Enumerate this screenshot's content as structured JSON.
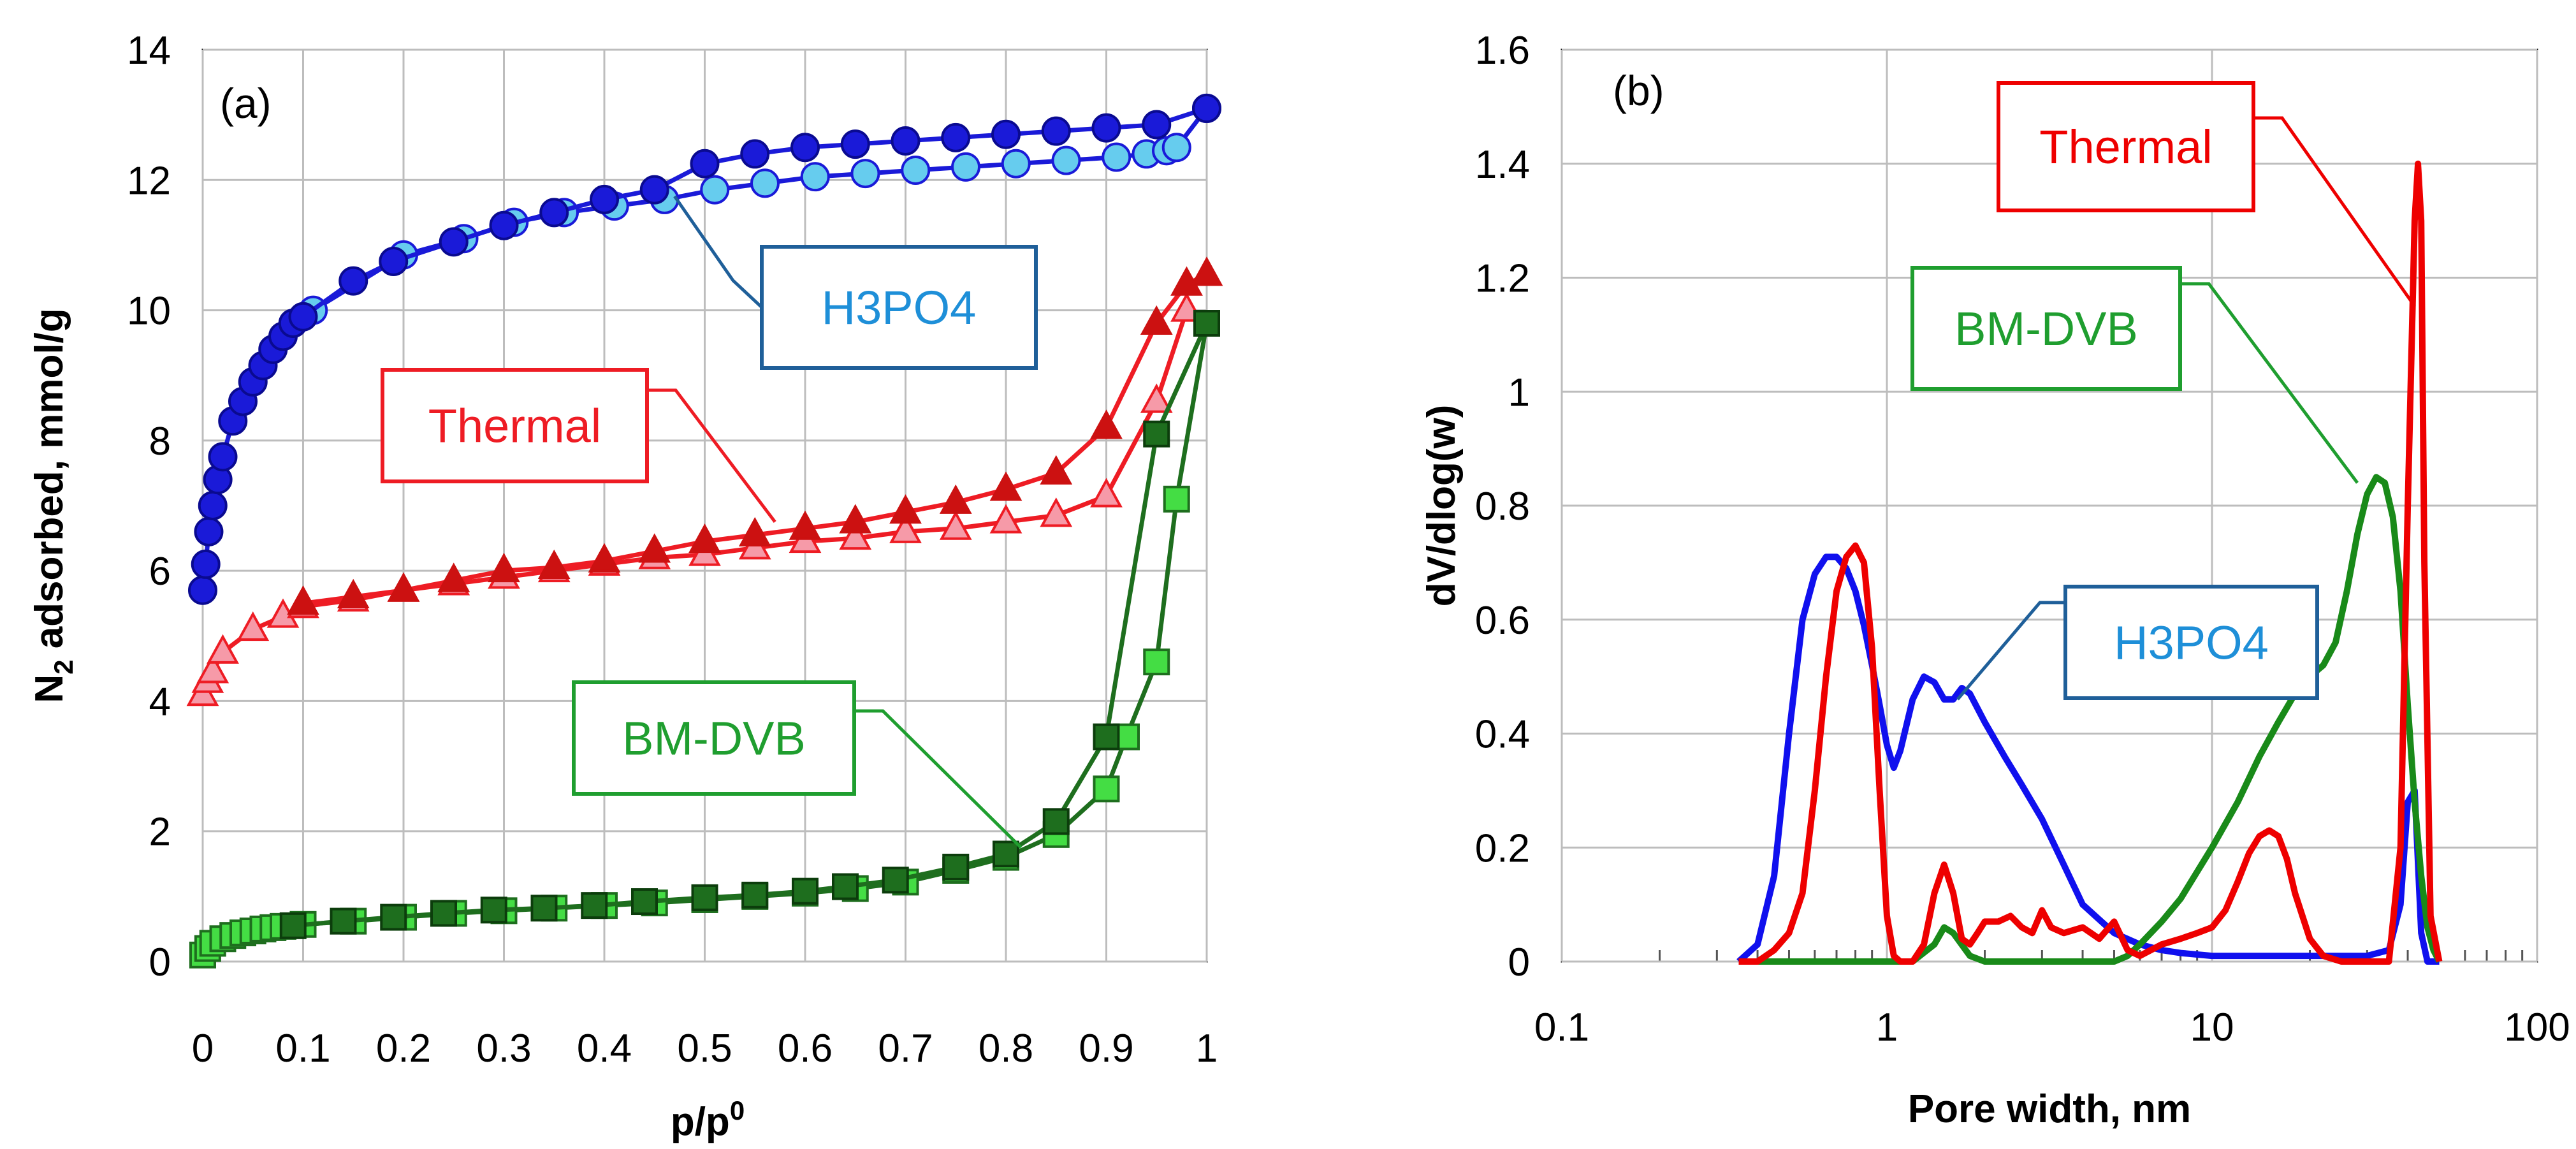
{
  "colors": {
    "h3po4_ads": "#1a1ad8",
    "h3po4_des": "#66ccee",
    "h3po4_box": "#1f5f99",
    "h3po4_text": "#1e8fd8",
    "thermal_ads": "#cc1111",
    "thermal_des": "#f69aa8",
    "thermal_line": "#ee1c24",
    "bmdvb_ads": "#1e6e1e",
    "bmdvb_des": "#44dd44",
    "bmdvb_line": "#1f9e2f",
    "psd_blue": "#1010ee",
    "psd_red": "#ee0000",
    "psd_green": "#198a19",
    "grid": "#bdbdbd"
  },
  "chart_data": [
    {
      "panel_label": "(a)",
      "type": "line",
      "xlabel": "p/p",
      "xlabel_sup": "0",
      "ylabel": "N",
      "ylabel_sub": "2",
      "ylabel_rest": " adsorbed, mmol/g",
      "xlim": [
        0,
        1
      ],
      "ylim": [
        0,
        14
      ],
      "xticks": [
        "0",
        "0.1",
        "0.2",
        "0.3",
        "0.4",
        "0.5",
        "0.6",
        "0.7",
        "0.8",
        "0.9",
        "1"
      ],
      "yticks": [
        "0",
        "2",
        "4",
        "6",
        "8",
        "10",
        "12",
        "14"
      ],
      "grid": true,
      "annotations": [
        {
          "text": "H3PO4",
          "target": [
            0.47,
            11.75
          ]
        },
        {
          "text": "Thermal",
          "target": [
            0.57,
            6.75
          ]
        },
        {
          "text": "BM-DVB",
          "target": [
            0.815,
            1.75
          ]
        }
      ],
      "series": [
        {
          "key": "h3po4_ads",
          "marker": "circle",
          "x": [
            0.0,
            0.003,
            0.006,
            0.01,
            0.015,
            0.02,
            0.03,
            0.04,
            0.05,
            0.06,
            0.07,
            0.08,
            0.09,
            0.1,
            0.15,
            0.19,
            0.25,
            0.3,
            0.35,
            0.4,
            0.45,
            0.5,
            0.55,
            0.6,
            0.65,
            0.7,
            0.75,
            0.8,
            0.85,
            0.9,
            0.95,
            1.0
          ],
          "y": [
            5.7,
            6.1,
            6.6,
            7.0,
            7.4,
            7.75,
            8.3,
            8.6,
            8.9,
            9.15,
            9.4,
            9.6,
            9.8,
            9.9,
            10.45,
            10.75,
            11.05,
            11.3,
            11.5,
            11.7,
            11.85,
            12.25,
            12.4,
            12.5,
            12.55,
            12.6,
            12.65,
            12.7,
            12.75,
            12.8,
            12.85,
            13.1
          ]
        },
        {
          "key": "h3po4_des",
          "marker": "circle",
          "x": [
            0.11,
            0.2,
            0.26,
            0.31,
            0.36,
            0.41,
            0.46,
            0.51,
            0.56,
            0.61,
            0.66,
            0.71,
            0.76,
            0.81,
            0.86,
            0.91,
            0.94,
            0.96,
            0.97,
            1.0
          ],
          "y": [
            10.0,
            10.85,
            11.1,
            11.35,
            11.5,
            11.6,
            11.7,
            11.85,
            11.95,
            12.05,
            12.1,
            12.15,
            12.2,
            12.25,
            12.3,
            12.35,
            12.4,
            12.45,
            12.5,
            13.1
          ]
        },
        {
          "key": "thermal_ads",
          "marker": "triangle",
          "x": [
            0.1,
            0.15,
            0.2,
            0.25,
            0.3,
            0.35,
            0.4,
            0.45,
            0.5,
            0.55,
            0.6,
            0.65,
            0.7,
            0.75,
            0.8,
            0.85,
            0.9,
            0.95,
            0.98,
            1.0
          ],
          "y": [
            5.5,
            5.6,
            5.7,
            5.85,
            6.0,
            6.05,
            6.15,
            6.3,
            6.45,
            6.55,
            6.65,
            6.75,
            6.9,
            7.05,
            7.25,
            7.5,
            8.2,
            9.8,
            10.4,
            10.55
          ]
        },
        {
          "key": "thermal_des",
          "marker": "triangle",
          "x": [
            0.0,
            0.005,
            0.01,
            0.02,
            0.05,
            0.08,
            0.1,
            0.15,
            0.2,
            0.25,
            0.3,
            0.35,
            0.4,
            0.45,
            0.5,
            0.55,
            0.6,
            0.65,
            0.7,
            0.75,
            0.8,
            0.85,
            0.9,
            0.95,
            0.98
          ],
          "y": [
            4.1,
            4.3,
            4.45,
            4.75,
            5.1,
            5.3,
            5.45,
            5.55,
            5.7,
            5.8,
            5.9,
            6.0,
            6.1,
            6.2,
            6.25,
            6.35,
            6.45,
            6.5,
            6.6,
            6.65,
            6.75,
            6.85,
            7.15,
            8.6,
            10.0
          ]
        },
        {
          "key": "bmdvb_ads",
          "marker": "square",
          "x": [
            0.09,
            0.14,
            0.19,
            0.24,
            0.29,
            0.34,
            0.39,
            0.44,
            0.5,
            0.55,
            0.6,
            0.64,
            0.69,
            0.75,
            0.8,
            0.85,
            0.9,
            0.95,
            1.0
          ],
          "y": [
            0.55,
            0.62,
            0.68,
            0.74,
            0.79,
            0.82,
            0.86,
            0.92,
            0.98,
            1.02,
            1.08,
            1.15,
            1.25,
            1.45,
            1.65,
            2.15,
            3.45,
            8.1,
            9.8
          ]
        },
        {
          "key": "bmdvb_des",
          "marker": "square",
          "x": [
            0.0,
            0.005,
            0.01,
            0.02,
            0.03,
            0.04,
            0.05,
            0.06,
            0.07,
            0.08,
            0.1,
            0.15,
            0.2,
            0.25,
            0.3,
            0.35,
            0.4,
            0.45,
            0.5,
            0.55,
            0.6,
            0.65,
            0.7,
            0.75,
            0.8,
            0.85,
            0.9,
            0.92,
            0.95,
            0.97,
            1.0
          ],
          "y": [
            0.1,
            0.2,
            0.28,
            0.35,
            0.4,
            0.44,
            0.47,
            0.5,
            0.52,
            0.54,
            0.57,
            0.62,
            0.68,
            0.74,
            0.78,
            0.82,
            0.86,
            0.9,
            0.95,
            1.0,
            1.05,
            1.12,
            1.22,
            1.4,
            1.6,
            1.95,
            2.65,
            3.45,
            4.6,
            7.1,
            9.8
          ]
        }
      ]
    },
    {
      "panel_label": "(b)",
      "type": "line",
      "xlabel": "Pore width, nm",
      "ylabel": "dV/dlog(w)",
      "xscale": "log",
      "xlim": [
        0.1,
        100
      ],
      "ylim": [
        0,
        1.6
      ],
      "xticks": [
        "0.1",
        "1",
        "10",
        "100"
      ],
      "yticks": [
        "0",
        "0.2",
        "0.4",
        "0.6",
        "0.8",
        "1",
        "1.2",
        "1.4",
        "1.6"
      ],
      "grid": true,
      "annotations": [
        {
          "text": "Thermal",
          "target": [
            42,
            1.15
          ]
        },
        {
          "text": "BM-DVB",
          "target": [
            28,
            0.84
          ]
        },
        {
          "text": "H3PO4",
          "target": [
            1.65,
            0.46
          ]
        }
      ],
      "series": [
        {
          "key": "psd_blue",
          "x": [
            0.35,
            0.4,
            0.45,
            0.5,
            0.55,
            0.6,
            0.65,
            0.7,
            0.75,
            0.8,
            0.85,
            0.9,
            0.95,
            1.0,
            1.05,
            1.1,
            1.2,
            1.3,
            1.4,
            1.5,
            1.6,
            1.7,
            1.8,
            2.0,
            2.3,
            2.6,
            3.0,
            3.5,
            4.0,
            5.0,
            6.0,
            7.0,
            8.0,
            10,
            15,
            20,
            30,
            35,
            38,
            40,
            42,
            44,
            46,
            50
          ],
          "y": [
            0.0,
            0.03,
            0.15,
            0.4,
            0.6,
            0.68,
            0.71,
            0.71,
            0.69,
            0.65,
            0.59,
            0.52,
            0.45,
            0.38,
            0.34,
            0.37,
            0.46,
            0.5,
            0.49,
            0.46,
            0.46,
            0.48,
            0.47,
            0.42,
            0.36,
            0.31,
            0.25,
            0.17,
            0.1,
            0.05,
            0.03,
            0.02,
            0.015,
            0.01,
            0.01,
            0.01,
            0.01,
            0.02,
            0.1,
            0.28,
            0.3,
            0.05,
            0.0,
            0.0
          ]
        },
        {
          "key": "psd_red",
          "x": [
            0.35,
            0.4,
            0.45,
            0.5,
            0.55,
            0.6,
            0.65,
            0.7,
            0.75,
            0.8,
            0.85,
            0.9,
            0.95,
            1.0,
            1.05,
            1.1,
            1.2,
            1.3,
            1.4,
            1.5,
            1.6,
            1.7,
            1.8,
            1.9,
            2.0,
            2.2,
            2.4,
            2.6,
            2.8,
            3.0,
            3.2,
            3.5,
            4.0,
            4.5,
            5.0,
            5.5,
            6.0,
            7.0,
            8.0,
            9.0,
            10,
            11,
            12,
            13,
            14,
            15,
            16,
            17,
            18,
            20,
            22,
            25,
            30,
            35,
            38,
            40,
            42,
            43,
            44,
            45,
            47,
            50
          ],
          "y": [
            0.0,
            0.0,
            0.02,
            0.05,
            0.12,
            0.3,
            0.5,
            0.65,
            0.71,
            0.73,
            0.7,
            0.55,
            0.3,
            0.08,
            0.01,
            0.0,
            0.0,
            0.03,
            0.12,
            0.17,
            0.12,
            0.04,
            0.03,
            0.05,
            0.07,
            0.07,
            0.08,
            0.06,
            0.05,
            0.09,
            0.06,
            0.05,
            0.06,
            0.04,
            0.07,
            0.02,
            0.01,
            0.03,
            0.04,
            0.05,
            0.06,
            0.09,
            0.14,
            0.19,
            0.22,
            0.23,
            0.22,
            0.18,
            0.12,
            0.04,
            0.01,
            0.0,
            0.0,
            0.0,
            0.2,
            0.8,
            1.3,
            1.4,
            1.3,
            0.7,
            0.08,
            0.0
          ]
        },
        {
          "key": "psd_green",
          "x": [
            0.35,
            0.5,
            0.8,
            1.0,
            1.2,
            1.4,
            1.5,
            1.6,
            1.8,
            2.0,
            3.0,
            4.0,
            5.0,
            5.5,
            6.0,
            7.0,
            8.0,
            10,
            12,
            14,
            16,
            18,
            20,
            22,
            24,
            26,
            28,
            30,
            32,
            34,
            36,
            38,
            40,
            42,
            44,
            46,
            48,
            50
          ],
          "y": [
            0.0,
            0.0,
            0.0,
            0.0,
            0.0,
            0.03,
            0.06,
            0.05,
            0.01,
            0.0,
            0.0,
            0.0,
            0.0,
            0.01,
            0.03,
            0.07,
            0.11,
            0.2,
            0.28,
            0.36,
            0.42,
            0.47,
            0.5,
            0.52,
            0.56,
            0.65,
            0.75,
            0.82,
            0.85,
            0.84,
            0.78,
            0.65,
            0.45,
            0.28,
            0.15,
            0.06,
            0.02,
            0.0
          ]
        }
      ]
    }
  ]
}
